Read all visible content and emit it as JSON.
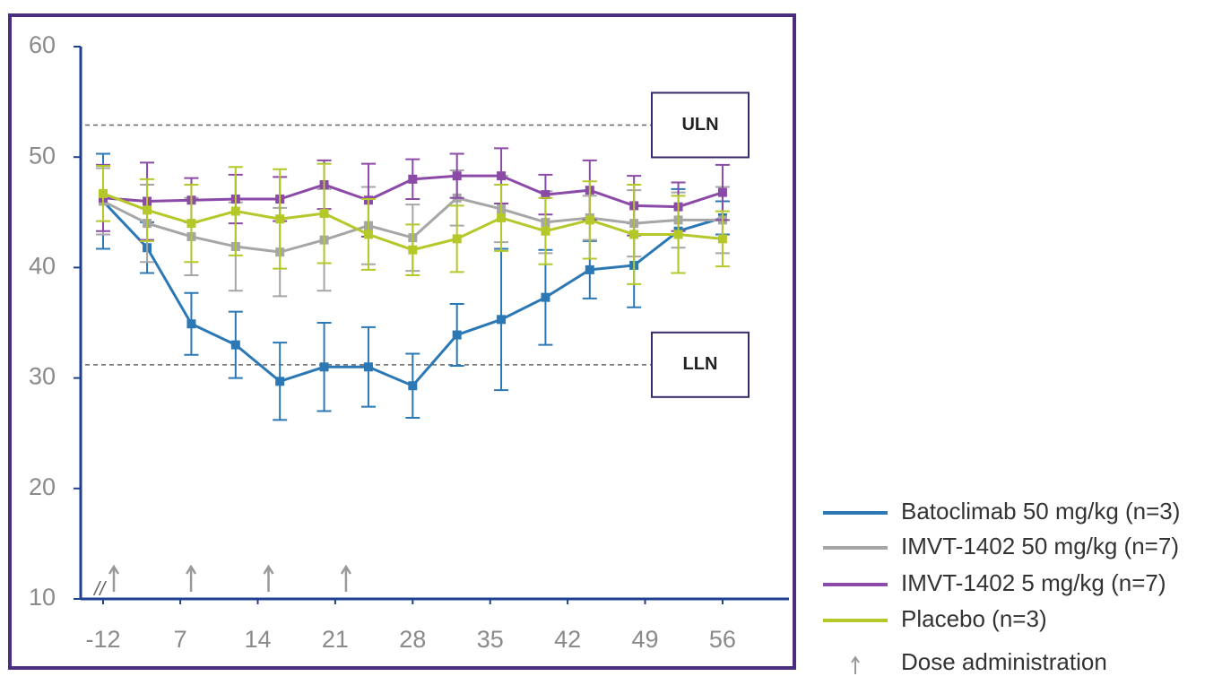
{
  "chart_data": {
    "type": "line",
    "x": [
      -12,
      4,
      8,
      12,
      16,
      20,
      24,
      28,
      32,
      36,
      40,
      44,
      48,
      52,
      56
    ],
    "xlim": [
      -2,
      62
    ],
    "xticks": [
      -12,
      7,
      14,
      21,
      28,
      35,
      42,
      49,
      56
    ],
    "axis_break": true,
    "ylim": [
      10,
      60
    ],
    "yticks": [
      10,
      20,
      30,
      40,
      50,
      60
    ],
    "series": [
      {
        "name": "Batoclimab 50 mg/kg (n=3)",
        "color": "#2b78b5",
        "values": [
          46,
          41.8,
          34.9,
          33,
          29.7,
          31,
          31,
          29.3,
          33.9,
          35.3,
          37.3,
          39.8,
          40.2,
          43.3,
          44.5
        ],
        "errors": [
          4.3,
          2.3,
          2.8,
          3,
          3.5,
          4,
          3.6,
          2.9,
          2.8,
          6.4,
          4.3,
          2.6,
          3.8,
          3.8,
          1.5
        ]
      },
      {
        "name": "IMVT-1402 50 mg/kg (n=7)",
        "color": "#a6a6a6",
        "values": [
          46,
          44,
          42.8,
          41.9,
          41.4,
          42.5,
          43.8,
          42.7,
          46.3,
          45.3,
          44.1,
          44.5,
          44,
          44.3,
          44.3
        ],
        "errors": [
          3,
          3.5,
          3.5,
          4,
          4,
          4.6,
          3.5,
          3,
          2.5,
          3,
          2.8,
          2,
          3,
          2.5,
          3
        ]
      },
      {
        "name": "IMVT-1402 5 mg/kg (n=7)",
        "color": "#8b4aa8",
        "values": [
          46.3,
          46,
          46.1,
          46.2,
          46.2,
          47.5,
          46.1,
          48,
          48.3,
          48.3,
          46.6,
          47,
          45.6,
          45.5,
          46.8
        ],
        "errors": [
          3,
          3.5,
          2,
          2.2,
          2,
          2.2,
          3.3,
          1.8,
          2,
          2.5,
          1.8,
          2.7,
          2.7,
          2.2,
          2.5
        ]
      },
      {
        "name": "Placebo (n=3)",
        "color": "#b5c82a",
        "values": [
          46.7,
          45.2,
          44,
          45.1,
          44.4,
          44.9,
          43,
          41.6,
          42.6,
          44.5,
          43.3,
          44.3,
          43,
          43,
          42.6
        ],
        "errors": [
          2.5,
          2.8,
          3.5,
          4,
          4.5,
          4.5,
          3.2,
          2.3,
          3,
          3,
          3,
          3.5,
          4.5,
          3.5,
          2.5
        ]
      }
    ],
    "reference_lines": [
      {
        "label": "ULN",
        "value": 52.9
      },
      {
        "label": "LLN",
        "value": 31.2
      }
    ],
    "doses": {
      "name": "Dose administration",
      "color": "#999999",
      "x": [
        -12,
        7,
        14,
        21
      ]
    }
  }
}
